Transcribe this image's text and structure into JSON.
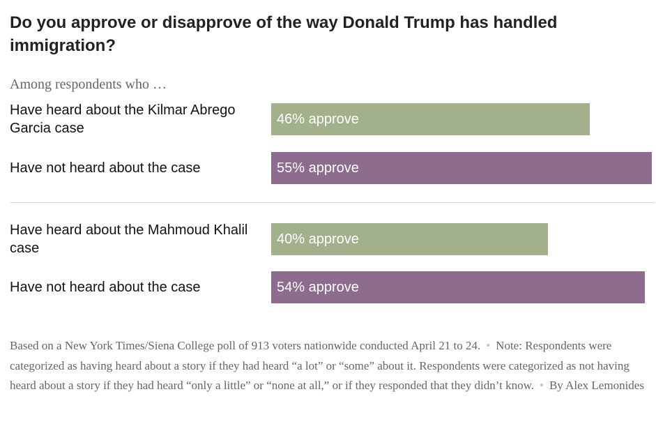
{
  "chart_data": {
    "type": "bar",
    "orientation": "horizontal",
    "title": "Do you approve or disapprove of the way Donald Trump has handled immigration?",
    "subtitle": "Among respondents who …",
    "xlim": [
      0,
      55
    ],
    "value_suffix": "% approve",
    "groups": [
      {
        "rows": [
          {
            "label": "Have heard about the Kilmar Abrego Garcia case",
            "value": 46,
            "color": "#a2b08c"
          },
          {
            "label": "Have not heard about the case",
            "value": 55,
            "color": "#8e6c8d"
          }
        ]
      },
      {
        "rows": [
          {
            "label": "Have heard about the Mahmoud Khalil case",
            "value": 40,
            "color": "#a2b08c"
          },
          {
            "label": "Have not heard about the case",
            "value": 54,
            "color": "#8e6c8d"
          }
        ]
      }
    ]
  },
  "footer": {
    "source": "Based on a New York Times/Siena College poll of 913 voters nationwide conducted April 21 to 24.",
    "note": "Note: Respondents were categorized as having heard about a story if they had heard “a lot” or “some” about it. Respondents were categorized as not having heard about a story if they had heard “only a little” or “none at all,” or if they responded that they didn’t know.",
    "byline": "By Alex Lemonides"
  }
}
